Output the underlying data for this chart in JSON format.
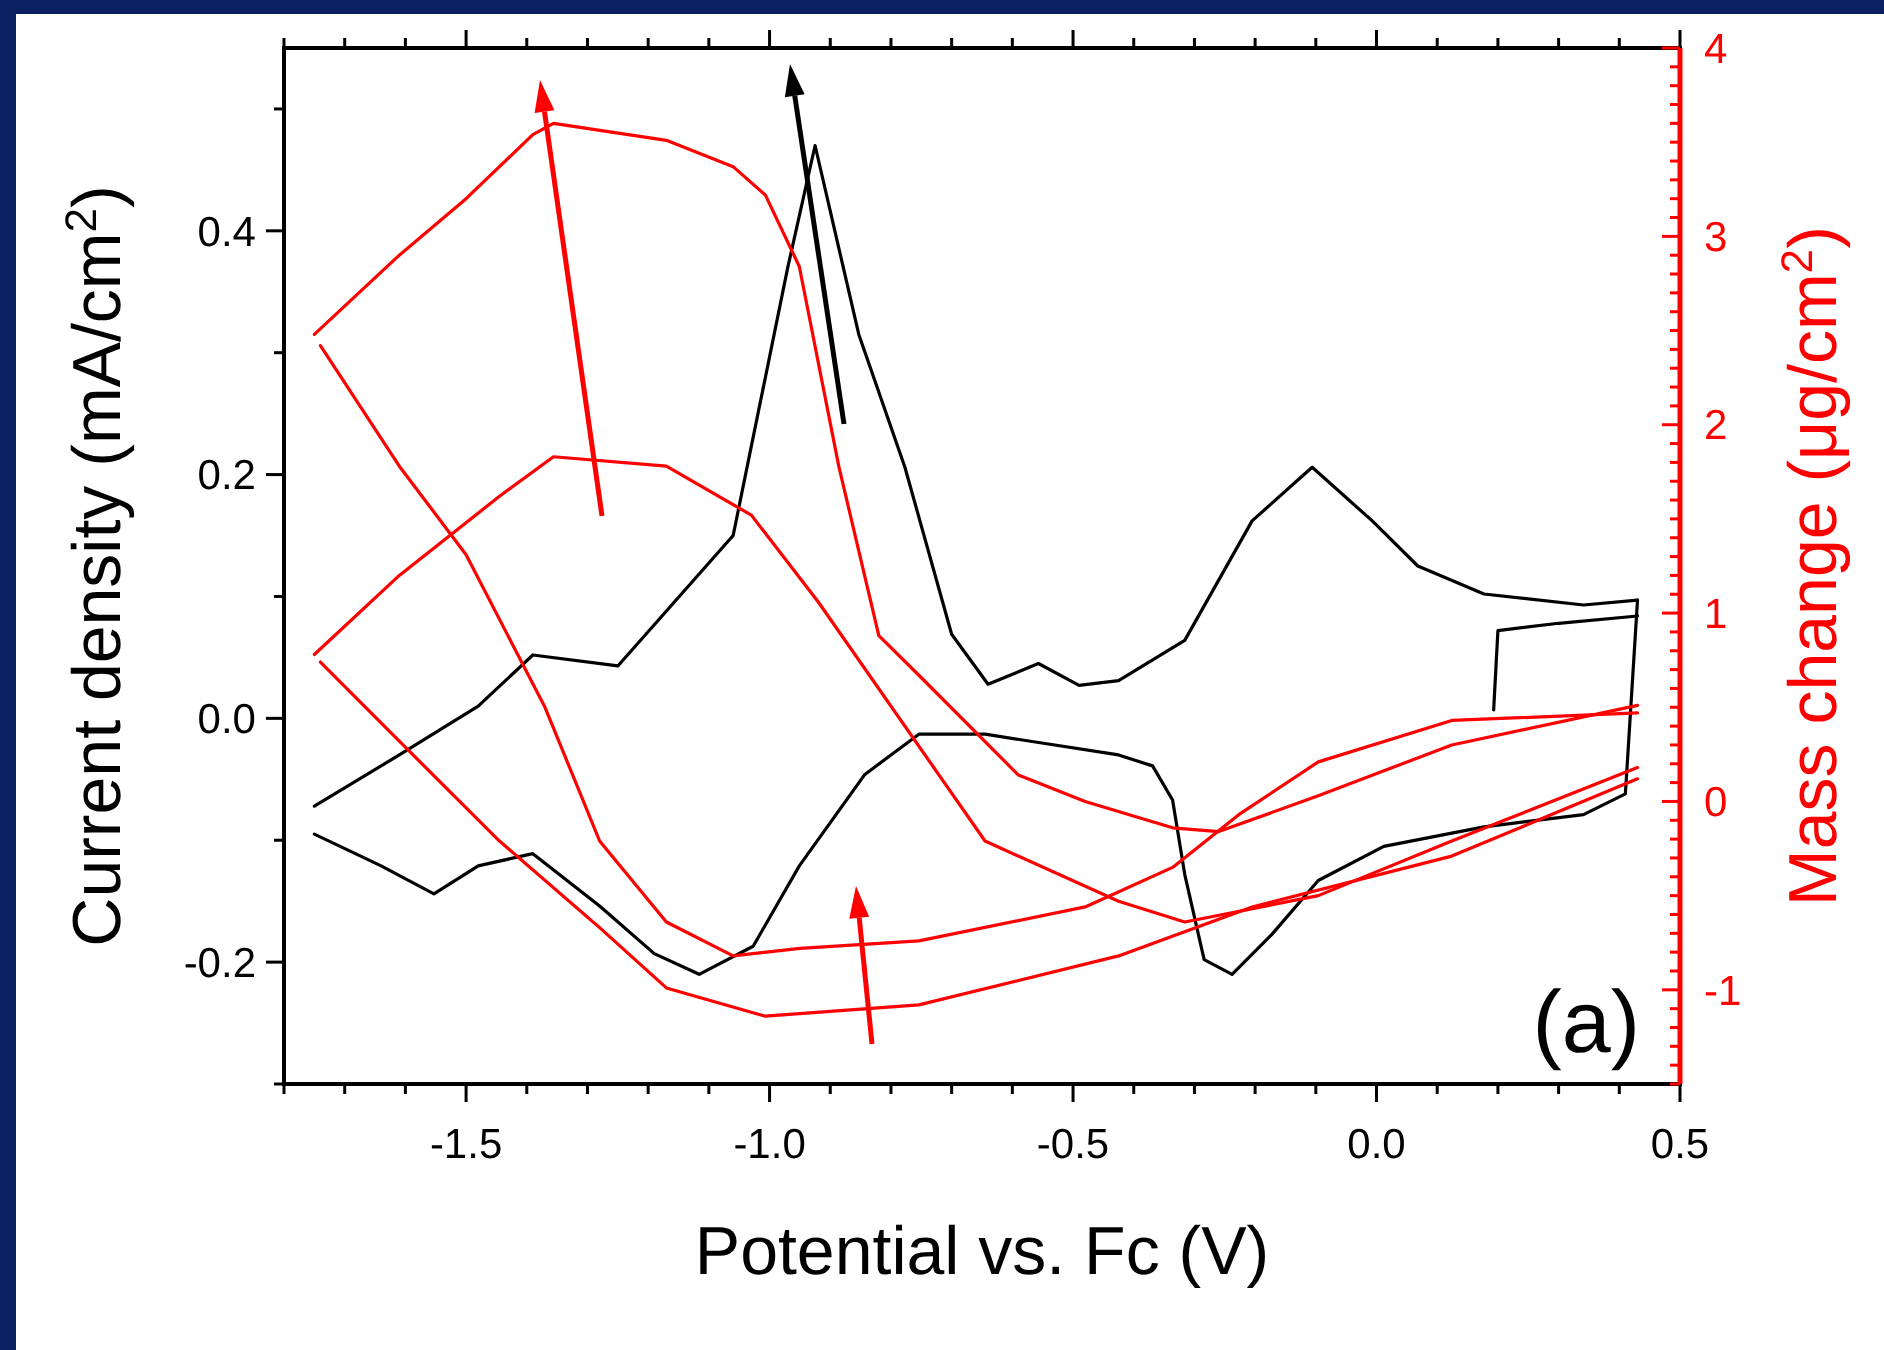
{
  "chart_data": {
    "type": "line",
    "xlabel": "Potential vs. Fc (V)",
    "ylabel": "Current density (mA/cm$^{2}$)",
    "y2label": "Mass change (μg/cm$^{2}$)",
    "annotations": [
      "(a)"
    ],
    "xlim": [
      -1.8,
      0.5
    ],
    "ylim": [
      -0.3,
      0.55
    ],
    "y2lim": [
      -1.5,
      4
    ],
    "xticks": [
      {
        "value": -1.8,
        "label": null
      },
      {
        "value": -1.7,
        "label": null
      },
      {
        "value": -1.6,
        "label": null
      },
      -1.5,
      {
        "value": -1.4,
        "label": null
      },
      {
        "value": -1.3,
        "label": null
      },
      {
        "value": -1.2,
        "label": null
      },
      {
        "value": -1.1,
        "label": null
      },
      {
        "value": -1.0,
        "label": "-1.0"
      },
      {
        "value": -0.9,
        "label": null
      },
      {
        "value": -0.8,
        "label": null
      },
      {
        "value": -0.7,
        "label": null
      },
      {
        "value": -0.6,
        "label": null
      },
      -0.5,
      {
        "value": -0.4,
        "label": null
      },
      {
        "value": -0.3,
        "label": null
      },
      {
        "value": -0.2,
        "label": null
      },
      {
        "value": -0.1,
        "label": null
      },
      {
        "value": 0,
        "label": "0.0"
      },
      {
        "value": 0.1,
        "label": null
      },
      {
        "value": 0.2,
        "label": null
      },
      {
        "value": 0.3,
        "label": null
      },
      {
        "value": 0.4,
        "label": null
      },
      0.5
    ],
    "yticks": [
      {
        "value": -0.3,
        "label": null
      },
      -0.2,
      {
        "value": -0.1,
        "label": null
      },
      {
        "value": 0,
        "label": "0.0"
      },
      {
        "value": 0.1,
        "label": null
      },
      0.2,
      {
        "value": 0.3,
        "label": null
      },
      0.4,
      {
        "value": 0.5,
        "label": null
      }
    ],
    "y2ticks": [
      {
        "value": -1.5,
        "label": null
      },
      {
        "value": -1.4,
        "label": null
      },
      {
        "value": -1.3,
        "label": null
      },
      {
        "value": -1.2,
        "label": null
      },
      {
        "value": -1.1,
        "label": null
      },
      -1,
      {
        "value": -0.9,
        "label": null
      },
      {
        "value": -0.8,
        "label": null
      },
      {
        "value": -0.7,
        "label": null
      },
      {
        "value": -0.6,
        "label": null
      },
      {
        "value": -0.5,
        "label": null
      },
      {
        "value": -0.4,
        "label": null
      },
      {
        "value": -0.3,
        "label": null
      },
      {
        "value": -0.2,
        "label": null
      },
      {
        "value": -0.1,
        "label": null
      },
      0,
      {
        "value": 0.1,
        "label": null
      },
      {
        "value": 0.2,
        "label": null
      },
      {
        "value": 0.3,
        "label": null
      },
      {
        "value": 0.4,
        "label": null
      },
      {
        "value": 0.5,
        "label": null
      },
      {
        "value": 0.6,
        "label": null
      },
      {
        "value": 0.7,
        "label": null
      },
      {
        "value": 0.8,
        "label": null
      },
      {
        "value": 0.9,
        "label": null
      },
      1,
      {
        "value": 1.1,
        "label": null
      },
      {
        "value": 1.2,
        "label": null
      },
      {
        "value": 1.3,
        "label": null
      },
      {
        "value": 1.4,
        "label": null
      },
      {
        "value": 1.5,
        "label": null
      },
      {
        "value": 1.6,
        "label": null
      },
      {
        "value": 1.7,
        "label": null
      },
      {
        "value": 1.8,
        "label": null
      },
      {
        "value": 1.9,
        "label": null
      },
      2,
      {
        "value": 2.1,
        "label": null
      },
      {
        "value": 2.2,
        "label": null
      },
      {
        "value": 2.3,
        "label": null
      },
      {
        "value": 2.4,
        "label": null
      },
      {
        "value": 2.5,
        "label": null
      },
      {
        "value": 2.6,
        "label": null
      },
      {
        "value": 2.7,
        "label": null
      },
      {
        "value": 2.8,
        "label": null
      },
      {
        "value": 2.9,
        "label": null
      },
      3,
      {
        "value": 3.1,
        "label": null
      },
      {
        "value": 3.2,
        "label": null
      },
      {
        "value": 3.3,
        "label": null
      },
      {
        "value": 3.4,
        "label": null
      },
      {
        "value": 3.5,
        "label": null
      },
      {
        "value": 3.6,
        "label": null
      },
      {
        "value": 3.7,
        "label": null
      },
      {
        "value": 3.8,
        "label": null
      },
      {
        "value": 3.9,
        "label": null
      },
      4
    ],
    "grid": false,
    "marker": "none",
    "line_style": "solid",
    "series": [
      {
        "color": "#000000",
        "x": [
          -1.75,
          -1.61,
          -1.48,
          -1.39,
          -1.25,
          -1.06,
          -0.97,
          -0.925,
          -0.853,
          -0.777,
          -0.7,
          -0.64,
          -0.557,
          -0.49,
          -0.425,
          -0.316,
          -0.205,
          -0.106,
          -0.007,
          0.068,
          0.177,
          0.341,
          0.43
        ],
        "values": [
          -0.072,
          -0.03,
          0.01,
          0.052,
          0.043,
          0.15,
          0.37,
          0.47,
          0.315,
          0.206,
          0.069,
          0.028,
          0.045,
          0.027,
          0.031,
          0.064,
          0.162,
          0.206,
          0.162,
          0.125,
          0.102,
          0.093,
          0.097
        ]
      },
      {
        "color": "#000000",
        "x": [
          0.43,
          0.41,
          0.341,
          0.177,
          0.012,
          -0.096,
          -0.172,
          -0.238,
          -0.284,
          -0.316,
          -0.336,
          -0.369,
          -0.425,
          -0.645,
          -0.754,
          -0.843,
          -0.951,
          -1.027,
          -1.116,
          -1.19,
          -1.28,
          -1.39,
          -1.48,
          -1.553,
          -1.64,
          -1.75
        ],
        "values": [
          0.097,
          -0.062,
          -0.079,
          -0.089,
          -0.105,
          -0.133,
          -0.177,
          -0.21,
          -0.198,
          -0.128,
          -0.067,
          -0.039,
          -0.03,
          -0.013,
          -0.013,
          -0.046,
          -0.121,
          -0.187,
          -0.21,
          -0.193,
          -0.154,
          -0.111,
          -0.121,
          -0.144,
          -0.121,
          -0.095
        ]
      },
      {
        "color": "#000000",
        "x": [
          0.193,
          0.2,
          0.3,
          0.43
        ],
        "values": [
          0.007,
          0.072,
          0.078,
          0.084
        ]
      },
      {
        "color": "#ff0000",
        "axis": "y2",
        "x": [
          -1.75,
          -1.61,
          -1.445,
          -1.356,
          -1.17,
          -1.03,
          -0.92,
          -0.645,
          -0.425,
          -0.316,
          -0.096,
          0.124,
          0.43
        ],
        "values": [
          0.78,
          1.2,
          1.62,
          1.83,
          1.78,
          1.52,
          1.06,
          -0.21,
          -0.53,
          -0.64,
          -0.5,
          -0.21,
          0.18
        ]
      },
      {
        "color": "#ff0000",
        "axis": "y2",
        "x": [
          0.43,
          0.124,
          -0.205,
          -0.425,
          -0.754,
          -1.007,
          -1.17,
          -1.28,
          -1.445,
          -1.61,
          -1.74
        ],
        "values": [
          0.12,
          -0.29,
          -0.56,
          -0.82,
          -1.08,
          -1.14,
          -0.99,
          -0.67,
          -0.21,
          0.32,
          0.74
        ]
      },
      {
        "color": "#ff0000",
        "axis": "y2",
        "x": [
          -1.75,
          -1.61,
          -1.5,
          -1.39,
          -1.356,
          -1.17,
          -1.06,
          -1.007,
          -0.951,
          -0.886,
          -0.82,
          -0.754,
          -0.59,
          -0.48,
          -0.336,
          -0.26,
          -0.096,
          0.124,
          0.43
        ],
        "values": [
          2.48,
          2.9,
          3.2,
          3.54,
          3.6,
          3.51,
          3.37,
          3.22,
          2.84,
          1.78,
          0.88,
          0.67,
          0.14,
          0,
          -0.14,
          -0.16,
          0.03,
          0.3,
          0.51
        ]
      },
      {
        "color": "#ff0000",
        "axis": "y2",
        "x": [
          0.43,
          0.124,
          -0.096,
          -0.227,
          -0.336,
          -0.48,
          -0.754,
          -0.95,
          -1.06,
          -1.17,
          -1.28,
          -1.37,
          -1.5,
          -1.61,
          -1.74
        ],
        "values": [
          0.47,
          0.43,
          0.21,
          -0.07,
          -0.35,
          -0.56,
          -0.74,
          -0.78,
          -0.82,
          -0.64,
          -0.21,
          0.5,
          1.31,
          1.78,
          2.42
        ]
      }
    ]
  }
}
